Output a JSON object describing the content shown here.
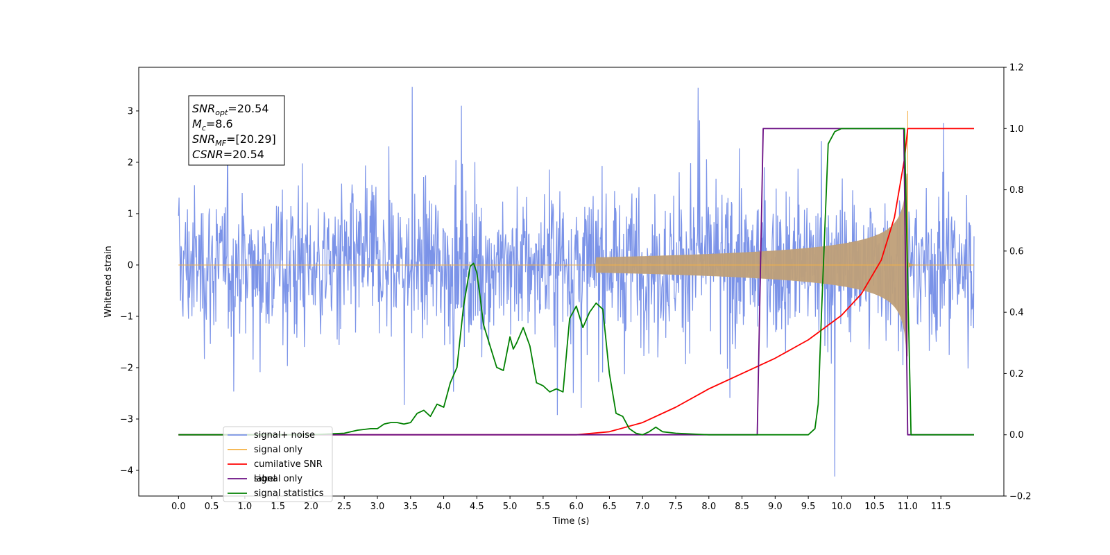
{
  "chart_data": {
    "type": "line",
    "title": "",
    "xlabel": "Time (s)",
    "ylabel": "Whitened strain",
    "xlim": [
      -0.6,
      12.45
    ],
    "ylim": [
      -4.5,
      3.85
    ],
    "y2lim": [
      -0.2,
      1.2
    ],
    "x_ticks": [
      "0.0",
      "0.5",
      "1.0",
      "1.5",
      "2.0",
      "2.5",
      "3.0",
      "3.5",
      "4.0",
      "4.5",
      "5.0",
      "5.5",
      "6.0",
      "6.5",
      "7.0",
      "7.5",
      "8.0",
      "8.5",
      "9.0",
      "9.5",
      "10.0",
      "10.5",
      "11.0",
      "11.5"
    ],
    "y_ticks": [
      "3",
      "2",
      "1",
      "0",
      "−1",
      "−2",
      "−3",
      "−4"
    ],
    "y2_ticks": [
      "1.2",
      "1.0",
      "0.8",
      "0.6",
      "0.4",
      "0.2",
      "0.0",
      "−0.2"
    ],
    "grid": false,
    "legend_position": "lower-left",
    "annotation": {
      "lines": [
        {
          "sym": "SNR",
          "sub": "opt",
          "value": "=20.54"
        },
        {
          "sym": "M",
          "sub": "c",
          "value": "=8.6"
        },
        {
          "sym": "SNR",
          "sub": "MF",
          "value": "=[20.29]"
        },
        {
          "sym": "CSNR",
          "sub": "",
          "value": "=20.54"
        }
      ]
    },
    "series": [
      {
        "name": "signal+ noise",
        "axis": "left",
        "color": "#7b93e8",
        "kind": "noise",
        "x_range": [
          0.0,
          12.0
        ],
        "amplitude_envelope": [
          1.9,
          3.47
        ],
        "note_values": {
          "max": 3.47,
          "min": -4.12
        }
      },
      {
        "name": "signal only",
        "axis": "left",
        "color": "#f5b041",
        "kind": "chirp",
        "x_range": [
          0.0,
          12.0
        ],
        "merger_time": 11.0,
        "peak": 3.0,
        "fill_color": "#bf9f78"
      },
      {
        "name": "cumilative SNR",
        "axis": "right",
        "color": "#ff0000",
        "x": [
          0.0,
          6.0,
          6.5,
          7.0,
          7.5,
          8.0,
          8.5,
          9.0,
          9.5,
          10.0,
          10.3,
          10.6,
          10.8,
          10.95,
          11.0,
          12.0
        ],
        "values": [
          0.0,
          0.0,
          0.01,
          0.04,
          0.09,
          0.15,
          0.2,
          0.25,
          0.31,
          0.39,
          0.46,
          0.57,
          0.71,
          0.9,
          1.0,
          1.0
        ]
      },
      {
        "name": "label",
        "axis": "right",
        "color": "#6a0d83",
        "x": [
          0.0,
          8.73,
          8.82,
          10.94,
          11.0,
          12.0
        ],
        "values": [
          0.0,
          0.0,
          1.0,
          1.0,
          0.0,
          0.0
        ]
      },
      {
        "name": "signal statistics",
        "axis": "right",
        "color": "#008000",
        "x": [
          0.0,
          2.0,
          2.5,
          2.7,
          2.9,
          3.0,
          3.1,
          3.2,
          3.3,
          3.4,
          3.5,
          3.6,
          3.7,
          3.8,
          3.9,
          4.0,
          4.1,
          4.2,
          4.3,
          4.4,
          4.45,
          4.5,
          4.55,
          4.6,
          4.7,
          4.8,
          4.9,
          5.0,
          5.05,
          5.1,
          5.2,
          5.3,
          5.4,
          5.5,
          5.6,
          5.7,
          5.8,
          5.9,
          6.0,
          6.1,
          6.2,
          6.3,
          6.4,
          6.5,
          6.6,
          6.7,
          6.8,
          6.9,
          7.0,
          7.1,
          7.2,
          7.3,
          7.5,
          8.0,
          8.5,
          9.0,
          9.5,
          9.6,
          9.65,
          9.7,
          9.8,
          9.9,
          10.0,
          10.5,
          10.95,
          11.05,
          12.0
        ],
        "values": [
          0.0,
          0.0,
          0.005,
          0.015,
          0.02,
          0.02,
          0.035,
          0.04,
          0.04,
          0.035,
          0.04,
          0.07,
          0.08,
          0.06,
          0.1,
          0.09,
          0.17,
          0.22,
          0.42,
          0.55,
          0.56,
          0.53,
          0.45,
          0.36,
          0.29,
          0.22,
          0.21,
          0.32,
          0.28,
          0.3,
          0.35,
          0.29,
          0.17,
          0.16,
          0.14,
          0.15,
          0.14,
          0.38,
          0.42,
          0.35,
          0.4,
          0.43,
          0.41,
          0.2,
          0.07,
          0.06,
          0.02,
          0.005,
          0.0,
          0.01,
          0.025,
          0.01,
          0.005,
          0.0,
          0.0,
          0.0,
          0.0,
          0.02,
          0.1,
          0.4,
          0.95,
          0.99,
          1.0,
          1.0,
          1.0,
          0.0,
          0.0
        ]
      },
      {
        "name": "signal only",
        "axis": "right",
        "color": "#f5b041",
        "legend_only": true
      }
    ]
  }
}
